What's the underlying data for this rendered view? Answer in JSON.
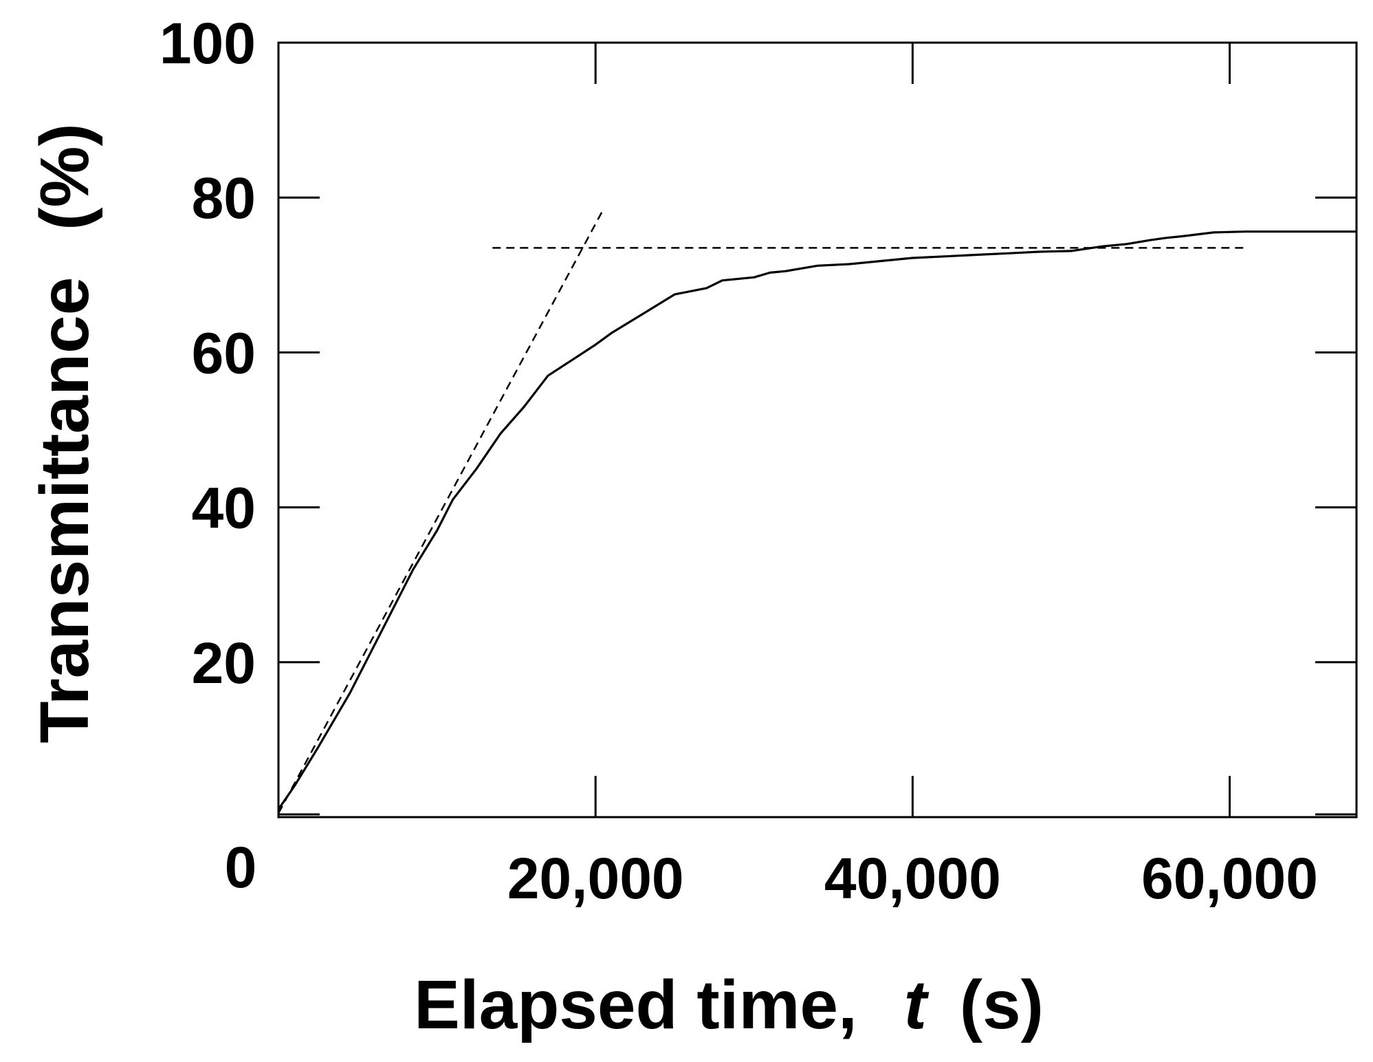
{
  "chart_data": {
    "type": "line",
    "xlabel": "Elapsed time,",
    "xlabel_var": "t",
    "xlabel_unit": "(s)",
    "ylabel": "Transmittance",
    "ylabel_unit": "(%)",
    "xlim": [
      0,
      68000
    ],
    "ylim": [
      0,
      100
    ],
    "x_ticks": [
      0,
      20000,
      40000,
      60000
    ],
    "x_tick_labels": [
      "0",
      "20,000",
      "40,000",
      "60,000"
    ],
    "y_ticks": [
      20,
      40,
      60,
      80,
      100
    ],
    "y_tick_labels": [
      "20",
      "40",
      "60",
      "80",
      "100"
    ],
    "grid": false,
    "series": [
      {
        "style": "solid",
        "color": "#000000",
        "x": [
          0,
          1000,
          2500,
          4500,
          6500,
          8500,
          10000,
          11000,
          12500,
          14000,
          15500,
          17000,
          18500,
          20000,
          21000,
          23000,
          25000,
          27000,
          28000,
          30000,
          31000,
          32000,
          34000,
          36000,
          38000,
          40000,
          42000,
          44000,
          46000,
          48000,
          50000,
          52000,
          53500,
          55000,
          56000,
          57000,
          59000,
          61000,
          63000,
          65000,
          68000
        ],
        "y": [
          1,
          4,
          9,
          16,
          24,
          32,
          37,
          41,
          45,
          49.5,
          53,
          57,
          59,
          61,
          62.5,
          65,
          67.5,
          68.3,
          69.3,
          69.7,
          70.3,
          70.5,
          71.2,
          71.4,
          71.8,
          72.2,
          72.4,
          72.6,
          72.8,
          73,
          73.1,
          73.7,
          74,
          74.5,
          74.8,
          75,
          75.5,
          75.6,
          75.6,
          75.6,
          75.6
        ]
      },
      {
        "style": "dashed",
        "color": "#000000",
        "x": [
          0,
          20500
        ],
        "y": [
          0.5,
          78.5
        ]
      },
      {
        "style": "dashed",
        "color": "#000000",
        "x": [
          13500,
          61000
        ],
        "y": [
          73.5,
          73.5
        ]
      }
    ]
  }
}
